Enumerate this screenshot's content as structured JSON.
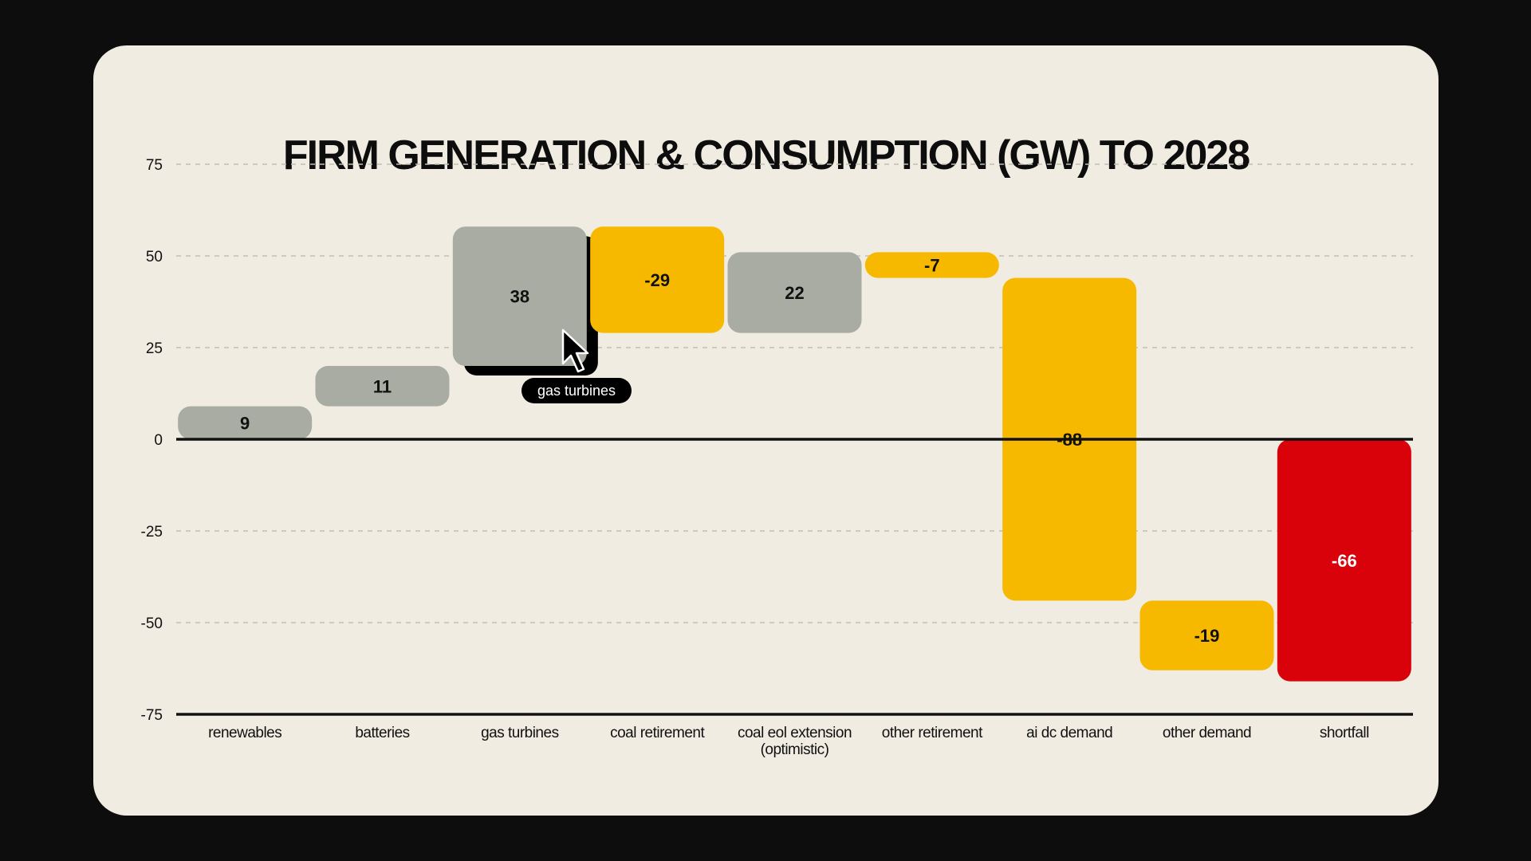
{
  "chart_data": {
    "type": "bar",
    "subtype": "waterfall",
    "title": "FIRM GENERATION & CONSUMPTION (GW) TO 2028",
    "categories": [
      "renewables",
      "batteries",
      "gas turbines",
      "coal retirement",
      "coal eol extension (optimistic)",
      "other retirement",
      "ai dc demand",
      "other demand",
      "shortfall"
    ],
    "category_lines": [
      [
        "renewables"
      ],
      [
        "batteries"
      ],
      [
        "gas turbines"
      ],
      [
        "coal retirement"
      ],
      [
        "coal eol extension",
        "(optimistic)"
      ],
      [
        "other retirement"
      ],
      [
        "ai dc demand"
      ],
      [
        "other demand"
      ],
      [
        "shortfall"
      ]
    ],
    "values": [
      9,
      11,
      38,
      -29,
      22,
      -7,
      -88,
      -19,
      -66
    ],
    "value_labels": [
      "9",
      "11",
      "38",
      "-29",
      "22",
      "-7",
      "-88",
      "-19",
      "-66"
    ],
    "bar_colors": [
      "#a8aca2",
      "#a8aca2",
      "#a8aca2",
      "#f6b900",
      "#a8aca2",
      "#f6b900",
      "#f6b900",
      "#f6b900",
      "#d9020a"
    ],
    "label_colors": [
      "#111111",
      "#111111",
      "#111111",
      "#111111",
      "#111111",
      "#111111",
      "#111111",
      "#111111",
      "#ffffff"
    ],
    "ylim": [
      -75,
      75
    ],
    "yticks": [
      75,
      50,
      25,
      0,
      -25,
      -50,
      -75
    ],
    "grid": true,
    "xlabel": "",
    "ylabel": "",
    "hover": {
      "category_index": 2,
      "tooltip": "gas turbines"
    }
  },
  "colors": {
    "background": "#0d0d0d",
    "card": "#f0ece2",
    "grid": "#c2beb4",
    "axis": "#111111"
  },
  "icons": {
    "cursor": "arrow-cursor-icon"
  }
}
